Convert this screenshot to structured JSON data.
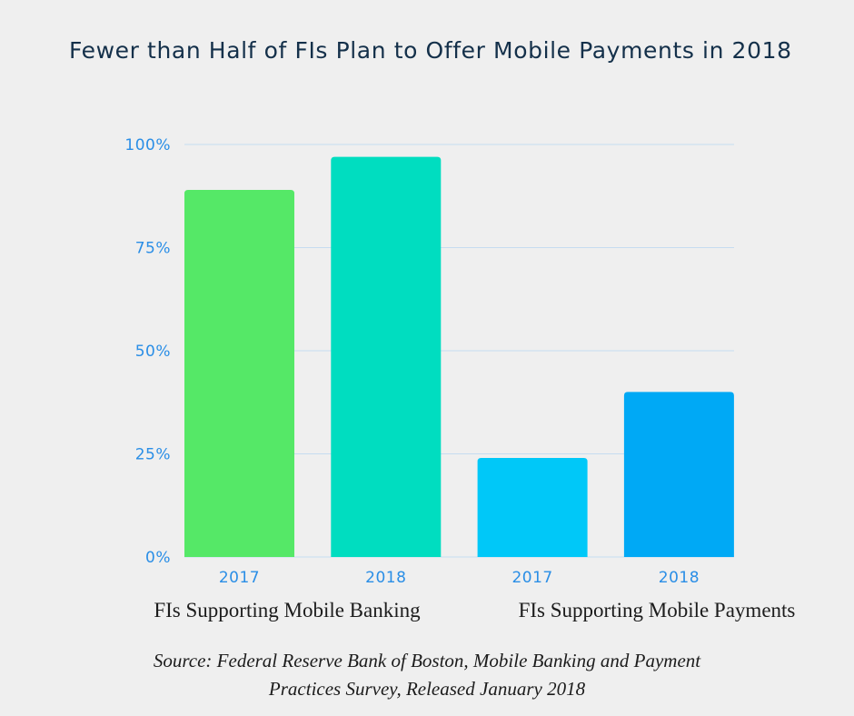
{
  "title": "Fewer than Half of FIs Plan to Offer Mobile Payments in 2018",
  "source": {
    "line1": "Source: Federal Reserve Bank of Boston, Mobile Banking and Payment",
    "line2": "Practices Survey, Released January 2018"
  },
  "colors": {
    "background": "#efefef",
    "title": "#14304a",
    "tick": "#2a8ee6",
    "grid": "#c6dcf0",
    "bars": [
      "#55e867",
      "#00ddc0",
      "#00c8f8",
      "#00a9f5"
    ]
  },
  "chart_data": {
    "type": "bar",
    "title": "Fewer than Half of FIs Plan to Offer Mobile Payments in 2018",
    "xlabel": "",
    "ylabel": "",
    "ylim": [
      0,
      100
    ],
    "y_ticks": [
      "0%",
      "25%",
      "50%",
      "75%",
      "100%"
    ],
    "y_tick_values": [
      0,
      25,
      50,
      75,
      100
    ],
    "grid": true,
    "categories": [
      "2017",
      "2018",
      "2017",
      "2018"
    ],
    "groups": [
      "FIs Supporting Mobile Banking",
      "FIs Supporting Mobile Payments"
    ],
    "values": [
      89,
      97,
      24,
      40
    ]
  }
}
